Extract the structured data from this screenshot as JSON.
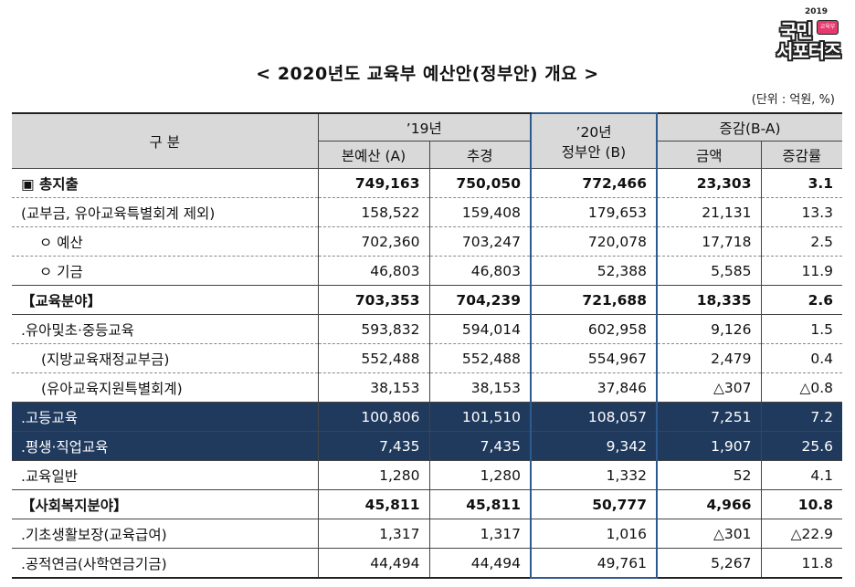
{
  "logo": {
    "year": "2019",
    "line1": "국민",
    "line2": "서포터즈",
    "badge": "교육부"
  },
  "title": "< 2020년도 교육부 예산안(정부안) 개요 >",
  "unit": "(단위 : 억원, %)",
  "table": {
    "headers": {
      "category": "구  분",
      "y19": "’19년",
      "y19_main": "본예산 (A)",
      "y19_supp": "추경",
      "y20_line1": "’20년",
      "y20_line2": "정부안 (B)",
      "change": "증감(B-A)",
      "change_amount": "금액",
      "change_rate": "증감률"
    },
    "rows": [
      {
        "label": "▣  총지출",
        "v19a": "749,163",
        "v19s": "750,050",
        "v20": "772,466",
        "amt": "23,303",
        "rate": "3.1"
      },
      {
        "label": "(교부금, 유아교육특별회계 제외)",
        "v19a": "158,522",
        "v19s": "159,408",
        "v20": "179,653",
        "amt": "21,131",
        "rate": "13.3"
      },
      {
        "label": "ㅇ  예산",
        "v19a": "702,360",
        "v19s": "703,247",
        "v20": "720,078",
        "amt": "17,718",
        "rate": "2.5"
      },
      {
        "label": "ㅇ  기금",
        "v19a": "46,803",
        "v19s": "46,803",
        "v20": "52,388",
        "amt": "5,585",
        "rate": "11.9"
      },
      {
        "label": "【교육분야】",
        "v19a": "703,353",
        "v19s": "704,239",
        "v20": "721,688",
        "amt": "18,335",
        "rate": "2.6"
      },
      {
        "label": ".유아및초·중등교육",
        "v19a": "593,832",
        "v19s": "594,014",
        "v20": "602,958",
        "amt": "9,126",
        "rate": "1.5"
      },
      {
        "label": "(지방교육재정교부금)",
        "v19a": "552,488",
        "v19s": "552,488",
        "v20": "554,967",
        "amt": "2,479",
        "rate": "0.4"
      },
      {
        "label": "(유아교육지원특별회계)",
        "v19a": "38,153",
        "v19s": "38,153",
        "v20": "37,846",
        "amt": "△307",
        "rate": "△0.8"
      },
      {
        "label": ".고등교육",
        "v19a": "100,806",
        "v19s": "101,510",
        "v20": "108,057",
        "amt": "7,251",
        "rate": "7.2"
      },
      {
        "label": ".평생·직업교육",
        "v19a": "7,435",
        "v19s": "7,435",
        "v20": "9,342",
        "amt": "1,907",
        "rate": "25.6"
      },
      {
        "label": ".교육일반",
        "v19a": "1,280",
        "v19s": "1,280",
        "v20": "1,332",
        "amt": "52",
        "rate": "4.1"
      },
      {
        "label": "【사회복지분야】",
        "v19a": "45,811",
        "v19s": "45,811",
        "v20": "50,777",
        "amt": "4,966",
        "rate": "10.8"
      },
      {
        "label": ".기초생활보장(교육급여)",
        "v19a": "1,317",
        "v19s": "1,317",
        "v20": "1,016",
        "amt": "△301",
        "rate": "△22.9"
      },
      {
        "label": ".공적연금(사학연금기금)",
        "v19a": "44,494",
        "v19s": "44,494",
        "v20": "49,761",
        "amt": "5,267",
        "rate": "11.8"
      }
    ]
  }
}
